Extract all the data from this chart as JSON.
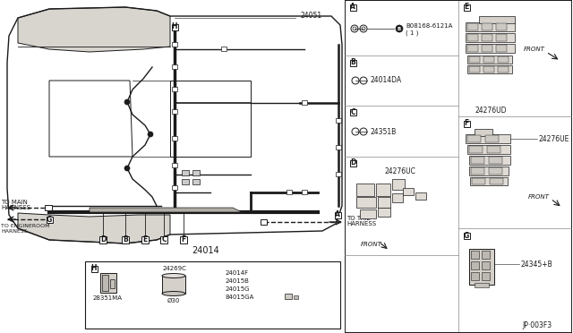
{
  "bg_color": "#f0ede8",
  "white": "#ffffff",
  "line_color": "#1a1a1a",
  "gray_line": "#888888",
  "light_gray": "#cccccc",
  "page_code": "JP·003F3",
  "parts": {
    "label_24051": "24051",
    "label_24014": "24014",
    "label_28351MA": "28351MA",
    "label_24269C": "24269C",
    "label_O30": "Ø30",
    "label_24014F": "24014F",
    "label_24015B": "24015B",
    "label_24015G": "24015G",
    "label_84015GA": "84015GA",
    "ref_A1": "B08168-6121A",
    "ref_A2": "( 1 )",
    "ref_B": "24014DA",
    "ref_C": "24351B",
    "ref_D": "24276UC",
    "ref_E": "24276UD",
    "ref_F": "24276UE",
    "ref_G": "24345+B",
    "to_main1": "TO MAIN",
    "to_main2": "HARNESS",
    "to_engine1": "TO ENGINEROOM",
    "to_engine2": "HARNESS",
    "to_tail1": "TO TAIL",
    "to_tail2": "HARNESS",
    "front": "FRONT"
  }
}
